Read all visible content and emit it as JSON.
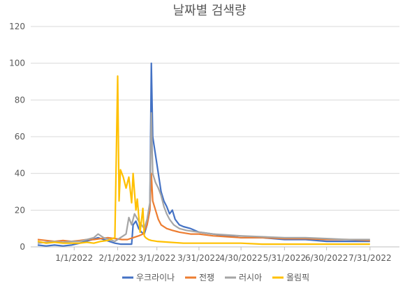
{
  "chart_data": {
    "type": "line",
    "title": "날짜별 검색량",
    "xlabel": "",
    "ylabel": "",
    "ylim": [
      0,
      120
    ],
    "yticks": [
      0,
      20,
      40,
      60,
      80,
      100,
      120
    ],
    "xlim": [
      "2021-12-01",
      "2022-08-21"
    ],
    "xticks": [
      "1/1/2022",
      "2/1/2022",
      "3/1/2022",
      "3/31/2022",
      "4/30/2022",
      "5/31/2022",
      "6/30/2022",
      "7/31/2022"
    ],
    "grid": "horizontal",
    "legend": "bottom",
    "series": [
      {
        "name": "우크라이나",
        "color": "#4472C4",
        "x": [
          "2021-12-06",
          "2021-12-12",
          "2021-12-18",
          "2021-12-24",
          "2021-12-30",
          "2022-01-05",
          "2022-01-09",
          "2022-01-14",
          "2022-01-18",
          "2022-01-22",
          "2022-01-26",
          "2022-01-30",
          "2022-02-03",
          "2022-02-07",
          "2022-02-11",
          "2022-02-12",
          "2022-02-14",
          "2022-02-16",
          "2022-02-18",
          "2022-02-20",
          "2022-02-22",
          "2022-02-24",
          "2022-02-25",
          "2022-02-26",
          "2022-02-28",
          "2022-03-02",
          "2022-03-04",
          "2022-03-06",
          "2022-03-08",
          "2022-03-10",
          "2022-03-12",
          "2022-03-14",
          "2022-03-17",
          "2022-03-20",
          "2022-03-25",
          "2022-03-31",
          "2022-04-10",
          "2022-04-20",
          "2022-04-30",
          "2022-05-15",
          "2022-05-31",
          "2022-06-15",
          "2022-06-30",
          "2022-07-15",
          "2022-07-31"
        ],
        "values": [
          1,
          0.5,
          1,
          0.5,
          1,
          2,
          3,
          4,
          5,
          4,
          3,
          2,
          1.5,
          1.5,
          1.5,
          12,
          14,
          10,
          8,
          7,
          12,
          20,
          100,
          60,
          50,
          40,
          30,
          25,
          22,
          18,
          20,
          15,
          12,
          11,
          10,
          8,
          7,
          6,
          5,
          5,
          4,
          4,
          3,
          3,
          3
        ]
      },
      {
        "name": "전쟁",
        "color": "#ED7D31",
        "x": [
          "2021-12-06",
          "2021-12-12",
          "2021-12-18",
          "2021-12-24",
          "2021-12-30",
          "2022-01-05",
          "2022-01-10",
          "2022-01-15",
          "2022-01-20",
          "2022-01-25",
          "2022-01-30",
          "2022-02-04",
          "2022-02-08",
          "2022-02-12",
          "2022-02-16",
          "2022-02-19",
          "2022-02-22",
          "2022-02-24",
          "2022-02-25",
          "2022-02-26",
          "2022-02-28",
          "2022-03-02",
          "2022-03-04",
          "2022-03-08",
          "2022-03-12",
          "2022-03-17",
          "2022-03-25",
          "2022-03-31",
          "2022-04-10",
          "2022-04-20",
          "2022-04-30",
          "2022-05-15",
          "2022-05-31",
          "2022-06-15",
          "2022-06-30",
          "2022-07-15",
          "2022-07-31"
        ],
        "values": [
          4,
          3.5,
          3,
          3.5,
          3,
          3.5,
          4,
          4,
          4.5,
          5,
          4.5,
          4,
          4,
          5,
          6,
          7,
          12,
          20,
          40,
          25,
          20,
          15,
          12,
          10,
          9,
          8,
          7,
          7,
          6,
          5.5,
          5,
          5,
          4.5,
          4.5,
          4,
          4,
          3.5
        ]
      },
      {
        "name": "러시아",
        "color": "#A5A5A5",
        "x": [
          "2021-12-06",
          "2021-12-12",
          "2021-12-18",
          "2021-12-24",
          "2021-12-30",
          "2022-01-05",
          "2022-01-10",
          "2022-01-15",
          "2022-01-18",
          "2022-01-22",
          "2022-01-26",
          "2022-01-30",
          "2022-02-03",
          "2022-02-07",
          "2022-02-09",
          "2022-02-11",
          "2022-02-13",
          "2022-02-16",
          "2022-02-18",
          "2022-02-20",
          "2022-02-22",
          "2022-02-24",
          "2022-02-25",
          "2022-02-26",
          "2022-02-28",
          "2022-03-02",
          "2022-03-04",
          "2022-03-06",
          "2022-03-08",
          "2022-03-10",
          "2022-03-13",
          "2022-03-17",
          "2022-03-22",
          "2022-03-31",
          "2022-04-10",
          "2022-04-20",
          "2022-04-30",
          "2022-05-15",
          "2022-05-31",
          "2022-06-15",
          "2022-06-30",
          "2022-07-15",
          "2022-07-31"
        ],
        "values": [
          2,
          2.5,
          3,
          2.5,
          3,
          3,
          4,
          5,
          7,
          5,
          4,
          3,
          5,
          7,
          16,
          12,
          18,
          14,
          12,
          10,
          15,
          24,
          73,
          40,
          35,
          32,
          28,
          22,
          18,
          15,
          12,
          10,
          9,
          8,
          7,
          6.5,
          6,
          5.5,
          5,
          5,
          4.5,
          4,
          4
        ]
      },
      {
        "name": "올림픽",
        "color": "#FFC000",
        "x": [
          "2021-12-06",
          "2021-12-12",
          "2021-12-18",
          "2021-12-24",
          "2021-12-30",
          "2022-01-05",
          "2022-01-10",
          "2022-01-15",
          "2022-01-20",
          "2022-01-25",
          "2022-01-30",
          "2022-02-01",
          "2022-02-02",
          "2022-02-03",
          "2022-02-05",
          "2022-02-07",
          "2022-02-09",
          "2022-02-11",
          "2022-02-12",
          "2022-02-14",
          "2022-02-15",
          "2022-02-17",
          "2022-02-19",
          "2022-02-20",
          "2022-02-21",
          "2022-02-23",
          "2022-02-25",
          "2022-03-01",
          "2022-03-10",
          "2022-03-20",
          "2022-03-31",
          "2022-04-15",
          "2022-04-30",
          "2022-05-15",
          "2022-05-31",
          "2022-06-15",
          "2022-06-30",
          "2022-07-15",
          "2022-07-31"
        ],
        "values": [
          3,
          2,
          2.5,
          2,
          2,
          2,
          2.5,
          2,
          3,
          3.5,
          5,
          93,
          25,
          42,
          38,
          32,
          38,
          24,
          40,
          20,
          26,
          8,
          21,
          6,
          5,
          4,
          3.5,
          3,
          2.5,
          2,
          2,
          2,
          2,
          1.5,
          1.5,
          1.5,
          1.5,
          1.5,
          1.5
        ]
      }
    ]
  }
}
